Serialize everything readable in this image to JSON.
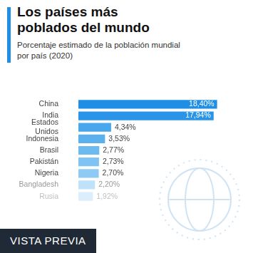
{
  "chart_data": {
    "type": "bar",
    "orientation": "horizontal",
    "title": "Los países más poblados del mundo",
    "subtitle": "Porcentaje estimado de la población mundial por país (2020)",
    "categories": [
      "China",
      "India",
      "Estados Unidos",
      "Indonesia",
      "Brasil",
      "Pakistán",
      "Nigeria",
      "Bangladesh",
      "Rusia"
    ],
    "values": [
      18.4,
      17.94,
      4.34,
      3.53,
      2.77,
      2.73,
      2.7,
      2.2,
      1.92
    ],
    "value_labels": [
      "18,40%",
      "17,94%",
      "4,34%",
      "3,53%",
      "2,77%",
      "2,73%",
      "2,70%",
      "2,20%",
      "1,92%"
    ],
    "colors": [
      "#1f8fe5",
      "#2a95e8",
      "#47a6ec",
      "#5ab1ee",
      "#6bbaf0",
      "#7ec3f3",
      "#8ecbf4",
      "#bfe1f9",
      "#dcedfb"
    ],
    "xlim": [
      0,
      19
    ],
    "data_labels": true,
    "grid": false,
    "tick_labels": "y",
    "annotation": "VISTA PREVIA"
  }
}
